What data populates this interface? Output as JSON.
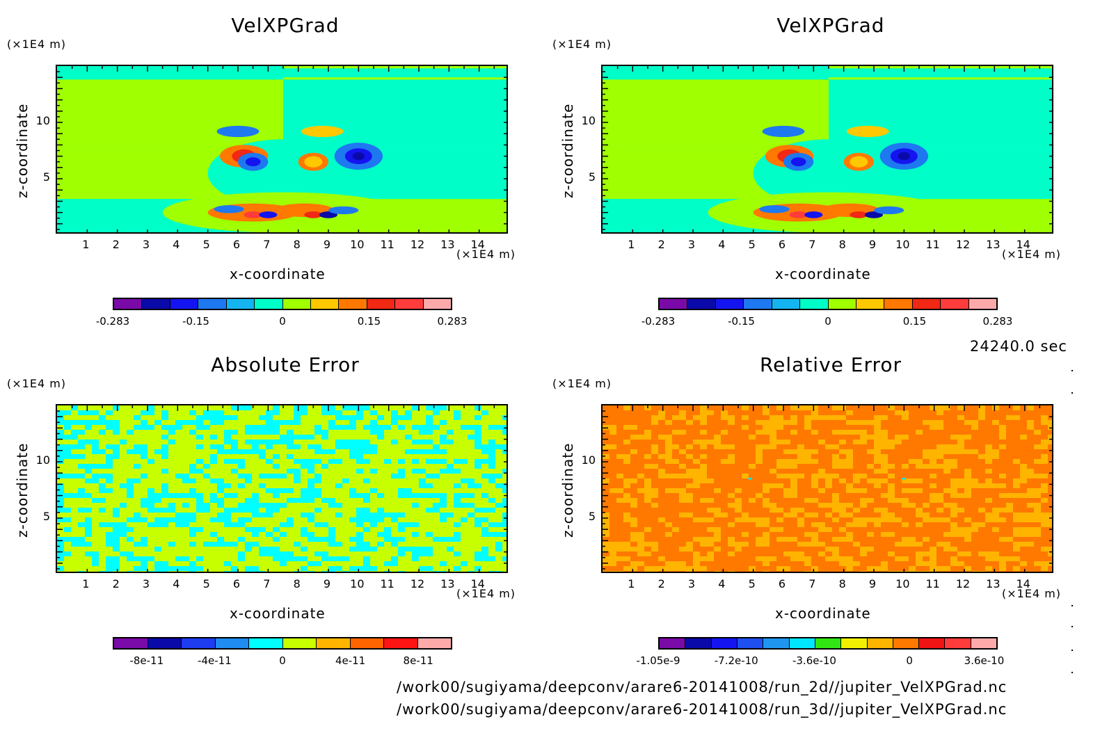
{
  "time_label": "24240.0 sec",
  "file_paths": [
    "/work00/sugiyama/deepconv/arare6-20141008/run_2d//jupiter_VelXPGrad.nc",
    "/work00/sugiyama/deepconv/arare6-20141008/run_3d//jupiter_VelXPGrad.nc"
  ],
  "chart_data": [
    {
      "type": "heatmap",
      "title": "VelXPGrad",
      "xlabel": "x-coordinate",
      "ylabel": "z-coordinate",
      "x_unit": "(×1E4 m)",
      "y_unit": "(×1E4 m)",
      "xlim": [
        0,
        15
      ],
      "ylim": [
        0,
        15
      ],
      "x_ticks": [
        "1",
        "2",
        "3",
        "4",
        "5",
        "6",
        "7",
        "8",
        "9",
        "10",
        "11",
        "12",
        "13",
        "14"
      ],
      "y_ticks": [
        "5",
        "10"
      ],
      "colorbar": {
        "colors": [
          "#7a0aa8",
          "#0a0aa8",
          "#1414f0",
          "#1e78f0",
          "#14b4f0",
          "#00ffc8",
          "#a0ff00",
          "#ffc800",
          "#ff7800",
          "#f02814",
          "#ff3c3c",
          "#ffaaaa"
        ],
        "labels": [
          "-0.283",
          "-0.15",
          "0",
          "0.15",
          "0.283"
        ]
      }
    },
    {
      "type": "heatmap",
      "title": "VelXPGrad",
      "xlabel": "x-coordinate",
      "ylabel": "z-coordinate",
      "x_unit": "(×1E4 m)",
      "y_unit": "(×1E4 m)",
      "xlim": [
        0,
        15
      ],
      "ylim": [
        0,
        15
      ],
      "x_ticks": [
        "1",
        "2",
        "3",
        "4",
        "5",
        "6",
        "7",
        "8",
        "9",
        "10",
        "11",
        "12",
        "13",
        "14"
      ],
      "y_ticks": [
        "5",
        "10"
      ],
      "colorbar": {
        "colors": [
          "#7a0aa8",
          "#0a0aa8",
          "#1414f0",
          "#1e78f0",
          "#14b4f0",
          "#00ffc8",
          "#a0ff00",
          "#ffc800",
          "#ff7800",
          "#f02814",
          "#ff3c3c",
          "#ffaaaa"
        ],
        "labels": [
          "-0.283",
          "-0.15",
          "0",
          "0.15",
          "0.283"
        ]
      }
    },
    {
      "type": "heatmap",
      "title": "Absolute Error",
      "xlabel": "x-coordinate",
      "ylabel": "z-coordinate",
      "x_unit": "(×1E4 m)",
      "y_unit": "(×1E4 m)",
      "xlim": [
        0,
        15
      ],
      "ylim": [
        0,
        15
      ],
      "x_ticks": [
        "1",
        "2",
        "3",
        "4",
        "5",
        "6",
        "7",
        "8",
        "9",
        "10",
        "11",
        "12",
        "13",
        "14"
      ],
      "y_ticks": [
        "5",
        "10"
      ],
      "colorbar": {
        "colors": [
          "#7a0aa8",
          "#0a0aa8",
          "#1e3cf0",
          "#1e8cf0",
          "#00ffff",
          "#c8ff00",
          "#ffb400",
          "#ff6400",
          "#ff1414",
          "#ffaaaa"
        ],
        "labels": [
          "-8e-11",
          "-4e-11",
          "0",
          "4e-11",
          "8e-11"
        ]
      }
    },
    {
      "type": "heatmap",
      "title": "Relative Error",
      "xlabel": "x-coordinate",
      "ylabel": "z-coordinate",
      "x_unit": "(×1E4 m)",
      "y_unit": "(×1E4 m)",
      "xlim": [
        0,
        15
      ],
      "ylim": [
        0,
        15
      ],
      "x_ticks": [
        "1",
        "2",
        "3",
        "4",
        "5",
        "6",
        "7",
        "8",
        "9",
        "10",
        "11",
        "12",
        "13",
        "14"
      ],
      "y_ticks": [
        "5",
        "10"
      ],
      "colorbar": {
        "colors": [
          "#7a0aa8",
          "#0a0aa8",
          "#1414f0",
          "#1e50f0",
          "#1e96f0",
          "#00e6ff",
          "#32e614",
          "#f0f000",
          "#ffb400",
          "#ff7800",
          "#f01414",
          "#ff3c3c",
          "#ffaaaa"
        ],
        "labels": [
          "-1.05e-9",
          "-7.2e-10",
          "-3.6e-10",
          "0",
          "3.6e-10"
        ]
      }
    }
  ]
}
